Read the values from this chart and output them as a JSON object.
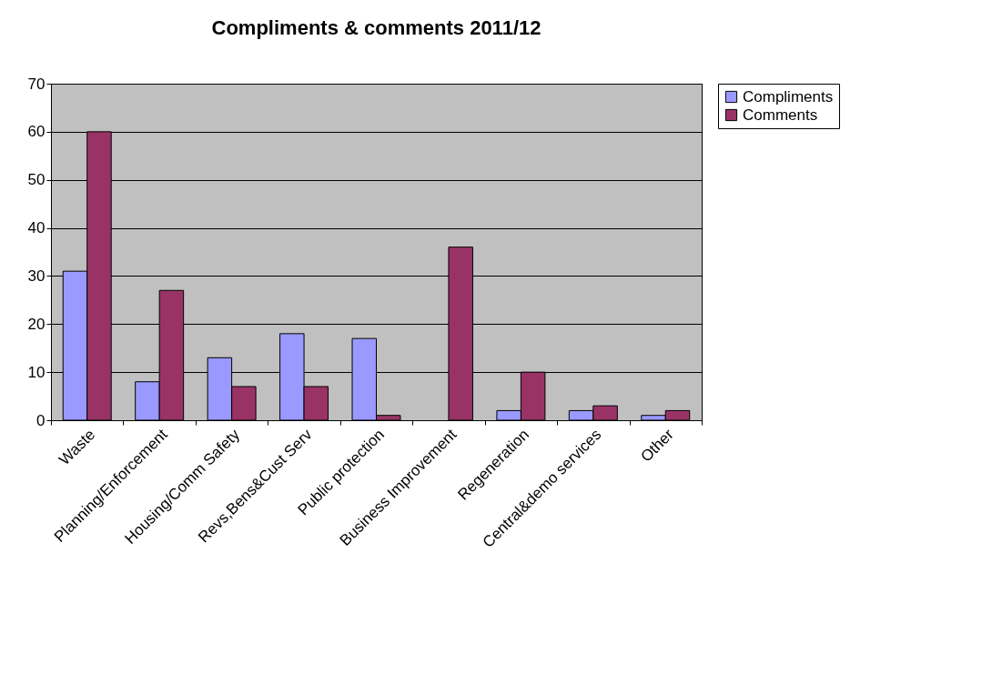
{
  "chart_data": {
    "type": "bar",
    "title": "Compliments & comments 2011/12",
    "categories": [
      "Waste",
      "Planning/Enforcement",
      "Housing/Comm Safety",
      "Revs,Bens&Cust Serv",
      "Public protection",
      "Business Improvement",
      "Regeneration",
      "Central&demo services",
      "Other"
    ],
    "series": [
      {
        "name": "Compliments",
        "color": "#9999ff",
        "values": [
          31,
          8,
          13,
          18,
          17,
          null,
          2,
          2,
          1
        ]
      },
      {
        "name": "Comments",
        "color": "#993366",
        "values": [
          60,
          27,
          7,
          7,
          1,
          36,
          10,
          3,
          2
        ]
      }
    ],
    "ylim": [
      0,
      70
    ],
    "yticks": [
      0,
      10,
      20,
      30,
      40,
      50,
      60,
      70
    ],
    "grid": "y",
    "legend": "right"
  }
}
